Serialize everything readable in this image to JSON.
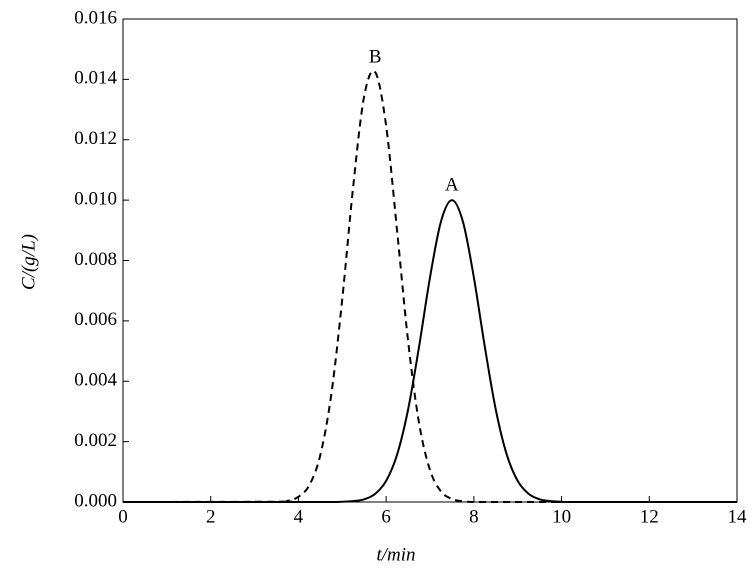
{
  "chart_data": {
    "type": "line",
    "xlabel": "t/min",
    "ylabel": "C/(g/L)",
    "x": [
      0,
      3.5,
      3.75,
      4,
      4.25,
      4.5,
      4.75,
      5,
      5.25,
      5.5,
      5.75,
      6,
      6.25,
      6.5,
      6.75,
      7,
      7.25,
      7.5,
      7.75,
      8,
      8.25,
      8.5,
      8.75,
      9,
      9.25,
      9.5,
      9.75,
      10,
      10.25,
      14
    ],
    "series": [
      {
        "name": "A",
        "color": "#000000",
        "line_style": "solid",
        "values": [
          0,
          0,
          0,
          0,
          0,
          0,
          0,
          1e-05,
          3e-05,
          9e-05,
          0.00027,
          0.0007,
          0.00157,
          0.00306,
          0.00514,
          0.00744,
          0.00929,
          0.01,
          0.00929,
          0.00744,
          0.00514,
          0.00306,
          0.00157,
          0.0007,
          0.00027,
          9e-05,
          3e-05,
          1e-05,
          0,
          0
        ]
      },
      {
        "name": "B",
        "color": "#000000",
        "line_style": "dashed",
        "values": [
          0,
          1e-05,
          4e-05,
          0.00017,
          0.00056,
          0.00156,
          0.00357,
          0.00673,
          0.01047,
          0.01345,
          0.01424,
          0.01246,
          0.00898,
          0.00534,
          0.00262,
          0.00106,
          0.00035,
          0.0001,
          2e-05,
          0,
          0,
          0,
          0,
          0,
          0,
          0,
          0,
          0,
          0,
          0
        ]
      }
    ],
    "xlim": [
      0,
      14
    ],
    "xticks": [
      0,
      2,
      4,
      6,
      8,
      10,
      12,
      14
    ],
    "ylim": [
      0,
      0.016
    ],
    "yticks": [
      {
        "value": 0,
        "label": "0.000"
      },
      {
        "value": 0.002,
        "label": "0.002"
      },
      {
        "value": 0.004,
        "label": "0.004"
      },
      {
        "value": 0.006,
        "label": "0.006"
      },
      {
        "value": 0.008,
        "label": "0.008"
      },
      {
        "value": 0.01,
        "label": "0.010"
      },
      {
        "value": 0.012,
        "label": "0.012"
      },
      {
        "value": 0.014,
        "label": "0.014"
      },
      {
        "value": 0.016,
        "label": "0.016"
      }
    ],
    "grid": false
  }
}
